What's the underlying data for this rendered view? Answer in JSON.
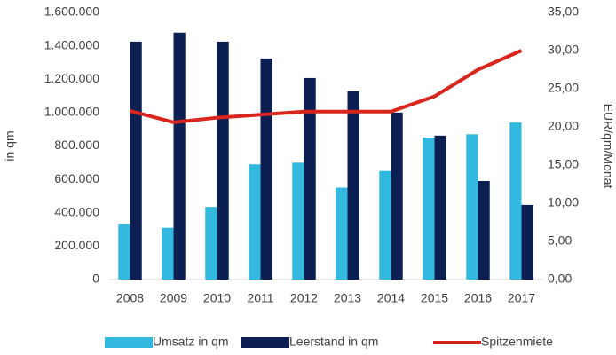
{
  "chart_data": {
    "type": "bar",
    "categories": [
      "2008",
      "2009",
      "2010",
      "2011",
      "2012",
      "2013",
      "2014",
      "2015",
      "2016",
      "2017"
    ],
    "series": [
      {
        "name": "Umsatz in qm",
        "type": "bar",
        "color": "#33b8e0",
        "values": [
          335000,
          310000,
          435000,
          690000,
          700000,
          550000,
          650000,
          850000,
          870000,
          940000
        ]
      },
      {
        "name": "Leerstand in qm",
        "type": "bar",
        "color": "#0b1f52",
        "values": [
          1425000,
          1479000,
          1425000,
          1324000,
          1207000,
          1128000,
          1000000,
          862000,
          590000,
          447000
        ]
      },
      {
        "name": "Spitzenmiete",
        "type": "line",
        "axis": "y2",
        "color": "#d9261c",
        "values": [
          22.1,
          20.6,
          21.2,
          21.6,
          22,
          22,
          22,
          24,
          27.5,
          30
        ]
      }
    ],
    "ylabel": "in qm",
    "y2label": "EUR/qm/Monat",
    "ylim": [
      0,
      1600000
    ],
    "yticks": [
      0,
      {
        "value": 200000,
        "label": "200.000"
      },
      {
        "value": 400000,
        "label": "400.000"
      },
      {
        "value": 600000,
        "label": "600.000"
      },
      {
        "value": 800000,
        "label": "800.000"
      },
      {
        "value": 1000000,
        "label": "1.000.000"
      },
      {
        "value": 1200000,
        "label": "1.200.000"
      },
      {
        "value": 1400000,
        "label": "1.400.000"
      },
      {
        "value": 1600000,
        "label": "1.600.000"
      }
    ],
    "y2lim": [
      0,
      35
    ],
    "y2ticks": [
      {
        "value": 0,
        "label": "0,00"
      },
      {
        "value": 5,
        "label": "5,00"
      },
      {
        "value": 10,
        "label": "10,00"
      },
      {
        "value": 15,
        "label": "15,00"
      },
      {
        "value": 20,
        "label": "20,00"
      },
      {
        "value": 25,
        "label": "25,00"
      },
      {
        "value": 30,
        "label": "30,00"
      },
      {
        "value": 35,
        "label": "35,00"
      }
    ],
    "legend": "bottom"
  }
}
